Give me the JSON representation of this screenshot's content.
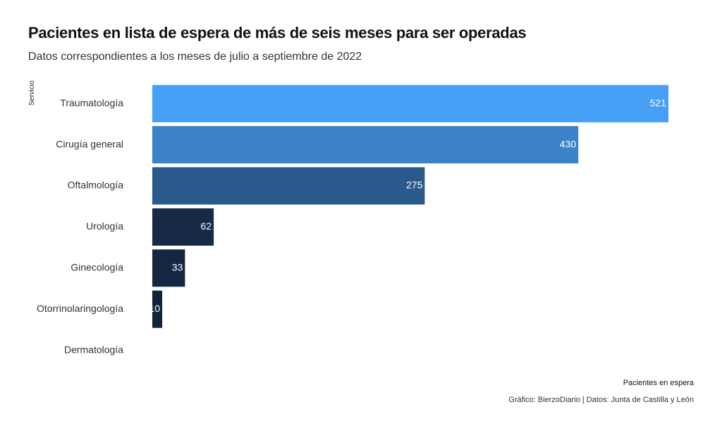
{
  "chart_data": {
    "type": "bar",
    "orientation": "horizontal",
    "title": "Pacientes en lista de espera de más de seis meses para ser operadas",
    "subtitle": "Datos correspondientes a los meses de julio a septiembre de 2022",
    "xlabel": "Pacientes en espera",
    "ylabel": "Servicio",
    "categories": [
      "Traumatología",
      "Cirugía general",
      "Oftalmología",
      "Urología",
      "Ginecología",
      "Otorrinolaringología",
      "Dermatología"
    ],
    "values": [
      521,
      430,
      275,
      62,
      33,
      10,
      0
    ],
    "data_labels": [
      "521",
      "430",
      "275",
      "62",
      "33",
      "10",
      ""
    ],
    "colors": [
      "#479ef5",
      "#3b82c9",
      "#2a5a8b",
      "#172a45",
      "#142640",
      "#13233b",
      "#13233b"
    ],
    "label_color": "#ffffff",
    "xlim": [
      0,
      521
    ],
    "grid": false,
    "legend": "none",
    "caption": "Gráfico: BierzoDiario | Datos: Junta de Castilla y León"
  }
}
